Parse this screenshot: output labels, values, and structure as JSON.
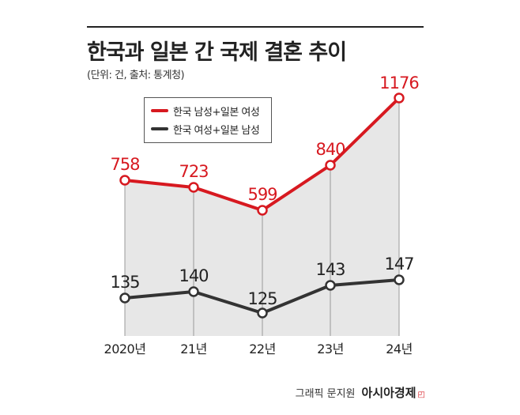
{
  "title": "한국과 일본 간 국제 결혼 추이",
  "subtitle": "(단위: 건, 출처: 통계청)",
  "credit": {
    "text": "그래픽 문지원",
    "brand": "아시아경제"
  },
  "colors": {
    "series_red": "#d71920",
    "series_dark": "#333333",
    "area_fill": "#e7e7e7"
  },
  "chart_data": {
    "type": "line",
    "categories": [
      "2020년",
      "21년",
      "22년",
      "23년",
      "24년"
    ],
    "series": [
      {
        "name": "한국 남성+일본 여성",
        "values": [
          758,
          723,
          599,
          840,
          1176
        ]
      },
      {
        "name": "한국 여성+일본 남성",
        "values": [
          135,
          140,
          125,
          143,
          147
        ]
      }
    ],
    "legend_position": "top-left",
    "grid": false
  }
}
